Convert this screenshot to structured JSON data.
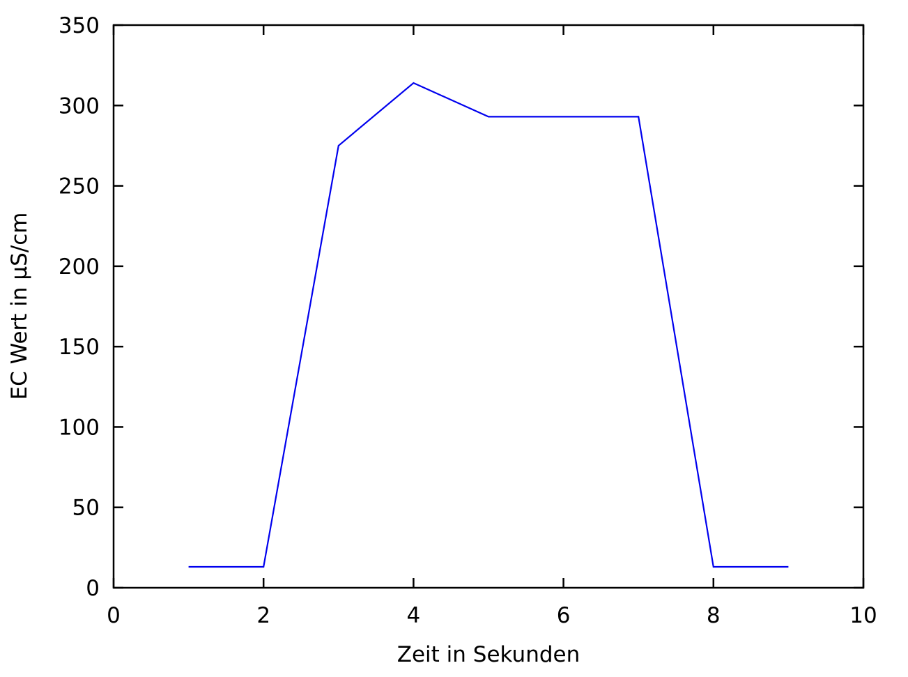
{
  "chart_data": {
    "type": "line",
    "title": "",
    "xlabel": "Zeit in Sekunden",
    "ylabel": "EC Wert in µS/cm",
    "xlim": [
      0,
      10
    ],
    "ylim": [
      0,
      350
    ],
    "xticks": [
      "0",
      "2",
      "4",
      "6",
      "8",
      "10"
    ],
    "yticks": [
      "0",
      "50",
      "100",
      "150",
      "200",
      "250",
      "300",
      "350"
    ],
    "grid": false,
    "legend": "none",
    "series": [
      {
        "color": "#0000ee",
        "x": [
          1,
          2,
          3,
          4,
          5,
          6,
          7,
          8,
          9
        ],
        "y": [
          13,
          13,
          275,
          314,
          293,
          293,
          293,
          13,
          13
        ]
      }
    ]
  }
}
